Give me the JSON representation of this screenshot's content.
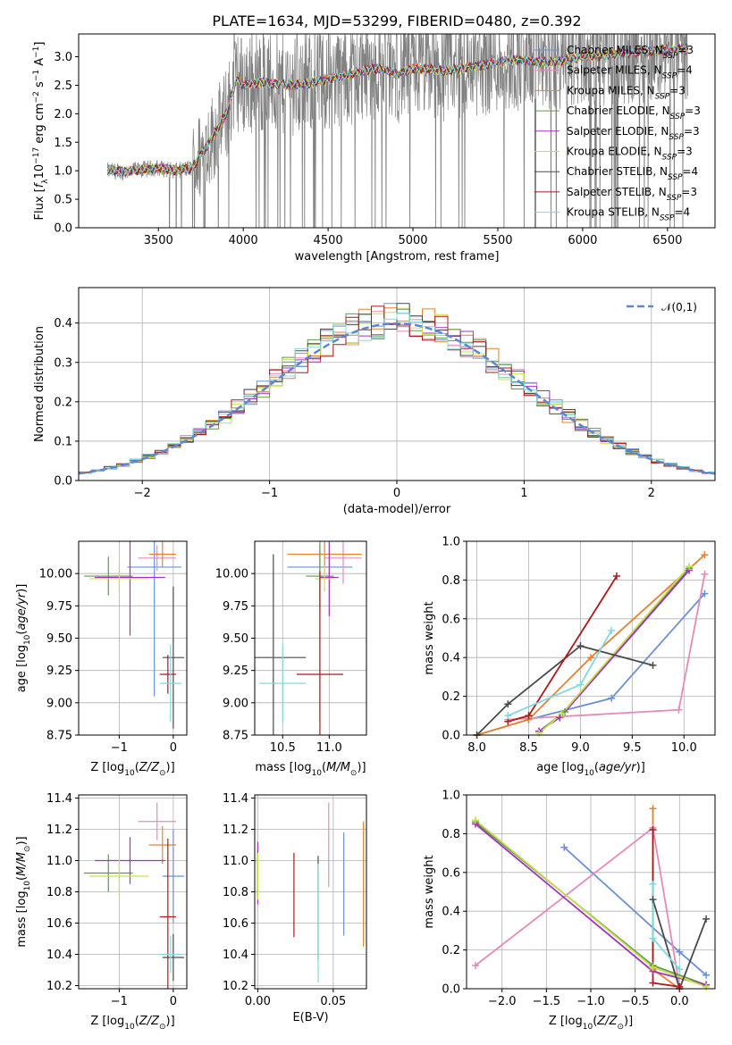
{
  "page": {
    "title": "PLATE=1634, MJD=53299, FIBERID=0480, z=0.392"
  },
  "models": [
    {
      "name": "Chabrier MILES",
      "nssp": 3,
      "color": "#6a8fd8"
    },
    {
      "name": "Salpeter MILES",
      "nssp": 4,
      "color": "#e58bb8"
    },
    {
      "name": "Kroupa MILES",
      "nssp": 3,
      "color": "#e6822e"
    },
    {
      "name": "Chabrier ELODIE",
      "nssp": 3,
      "color": "#5e9a4c"
    },
    {
      "name": "Salpeter ELODIE",
      "nssp": 3,
      "color": "#a233c0"
    },
    {
      "name": "Kroupa ELODIE",
      "nssp": 3,
      "color": "#c9e04a"
    },
    {
      "name": "Chabrier STELIB",
      "nssp": 4,
      "color": "#4a4a4a"
    },
    {
      "name": "Salpeter STELIB",
      "nssp": 3,
      "color": "#b01818"
    },
    {
      "name": "Kroupa STELIB",
      "nssp": 4,
      "color": "#80d8e0"
    }
  ],
  "chart_data": [
    {
      "id": "spectrum",
      "type": "line",
      "title": "PLATE=1634, MJD=53299, FIBERID=0480, z=0.392",
      "xlabel": "wavelength [Angstrom, rest frame]",
      "ylabel": "Flux [f_λ 10^-17 erg cm^-2 s^-1 A^-1]",
      "xlim": [
        3030,
        6780
      ],
      "ylim": [
        0,
        3.4
      ],
      "xticks": [
        3500,
        4000,
        4500,
        5000,
        5500,
        6000,
        6500
      ],
      "yticks": [
        0.0,
        0.5,
        1.0,
        1.5,
        2.0,
        2.5,
        3.0
      ],
      "data_color": "#808080",
      "continuum": [
        [
          3200,
          1.0
        ],
        [
          3300,
          0.98
        ],
        [
          3400,
          1.02
        ],
        [
          3500,
          1.05
        ],
        [
          3600,
          1.0
        ],
        [
          3700,
          1.05
        ],
        [
          3800,
          1.5
        ],
        [
          3900,
          2.0
        ],
        [
          3960,
          2.6
        ],
        [
          4000,
          2.5
        ],
        [
          4100,
          2.55
        ],
        [
          4300,
          2.5
        ],
        [
          4500,
          2.6
        ],
        [
          4700,
          2.75
        ],
        [
          4800,
          2.8
        ],
        [
          4900,
          2.7
        ],
        [
          5000,
          2.8
        ],
        [
          5200,
          2.75
        ],
        [
          5400,
          2.85
        ],
        [
          5600,
          2.95
        ],
        [
          5800,
          2.9
        ],
        [
          6000,
          3.0
        ],
        [
          6200,
          3.05
        ],
        [
          6400,
          3.1
        ],
        [
          6620,
          3.15
        ]
      ],
      "legend": "upper right",
      "grid": false
    },
    {
      "id": "residuals",
      "type": "line",
      "xlabel": "(data-model)/error",
      "ylabel": "Normed distribution",
      "xlim": [
        -2.5,
        2.5
      ],
      "ylim": [
        0,
        0.49
      ],
      "xticks": [
        -2,
        -1,
        0,
        1,
        2
      ],
      "yticks": [
        0.0,
        0.1,
        0.2,
        0.3,
        0.4
      ],
      "reference": {
        "label": "𝒩(0,1)",
        "mean": 0,
        "sigma": 1,
        "color": "#5b87d6"
      },
      "bin_width": 0.1,
      "legend": "upper right",
      "grid": true
    },
    {
      "id": "age-vs-Z",
      "type": "scatter",
      "xlabel": "Z [log10(Z/Z☉)]",
      "ylabel": "age  [log10(age/yr)]",
      "xlim": [
        -1.75,
        0.25
      ],
      "ylim": [
        8.75,
        10.25
      ],
      "xticks": [
        -1,
        0
      ],
      "yticks": [
        8.75,
        9.0,
        9.25,
        9.5,
        9.75,
        10.0
      ],
      "errorbars": [
        {
          "model": 0,
          "x": -0.35,
          "xerr": 0.5,
          "y": 10.05,
          "yerr": 1.0
        },
        {
          "model": 1,
          "x": -0.3,
          "xerr": 0.35,
          "y": 10.12,
          "yerr": 0.1
        },
        {
          "model": 2,
          "x": -0.2,
          "xerr": 0.25,
          "y": 10.15,
          "yerr": 0.1
        },
        {
          "model": 3,
          "x": -1.2,
          "xerr": 0.45,
          "y": 9.98,
          "yerr": 0.15
        },
        {
          "model": 4,
          "x": -0.8,
          "xerr": 0.65,
          "y": 9.97,
          "yerr": 0.45
        },
        {
          "model": 5,
          "x": -1.0,
          "xerr": 0.55,
          "y": 9.96,
          "yerr": 0.1
        },
        {
          "model": 6,
          "x": 0.0,
          "xerr": 0.2,
          "y": 9.35,
          "yerr": 0.55
        },
        {
          "model": 7,
          "x": -0.1,
          "xerr": 0.15,
          "y": 9.22,
          "yerr": 0.15
        },
        {
          "model": 8,
          "x": -0.05,
          "xerr": 0.2,
          "y": 9.15,
          "yerr": 0.3
        }
      ],
      "grid": true
    },
    {
      "id": "age-vs-mass",
      "type": "scatter",
      "xlabel": "mass [log10(M/M☉)]",
      "ylabel": "",
      "xlim": [
        10.2,
        11.4
      ],
      "ylim": [
        8.75,
        10.25
      ],
      "xticks": [
        10.5,
        11.0
      ],
      "yticks": [
        8.75,
        9.0,
        9.25,
        9.5,
        9.75,
        10.0
      ],
      "errorbars": [
        {
          "model": 0,
          "x": 10.9,
          "xerr": 0.35,
          "y": 10.05,
          "yerr": 1.2
        },
        {
          "model": 1,
          "x": 11.15,
          "xerr": 0.2,
          "y": 10.12,
          "yerr": 0.2
        },
        {
          "model": 2,
          "x": 10.95,
          "xerr": 0.4,
          "y": 10.15,
          "yerr": 0.15
        },
        {
          "model": 3,
          "x": 10.9,
          "xerr": 0.15,
          "y": 9.98,
          "yerr": 0.25
        },
        {
          "model": 4,
          "x": 11.0,
          "xerr": 0.1,
          "y": 9.97,
          "yerr": 0.3
        },
        {
          "model": 5,
          "x": 10.95,
          "xerr": 0.1,
          "y": 9.96,
          "yerr": 0.1
        },
        {
          "model": 6,
          "x": 10.4,
          "xerr": 0.35,
          "y": 9.35,
          "yerr": 0.8
        },
        {
          "model": 7,
          "x": 10.9,
          "xerr": 0.25,
          "y": 9.22,
          "yerr": 0.8
        },
        {
          "model": 8,
          "x": 10.5,
          "xerr": 0.25,
          "y": 9.15,
          "yerr": 0.3
        }
      ],
      "grid": true
    },
    {
      "id": "weight-vs-age",
      "type": "line",
      "xlabel": "age  [log10(age/yr)]",
      "ylabel": "mass weight",
      "xlim": [
        7.9,
        10.3
      ],
      "ylim": [
        0,
        1.0
      ],
      "xticks": [
        8.0,
        8.5,
        9.0,
        9.5,
        10.0
      ],
      "yticks": [
        0.0,
        0.2,
        0.4,
        0.6,
        0.8,
        1.0
      ],
      "series": [
        {
          "model": 0,
          "x": [
            8.0,
            8.5,
            9.3,
            10.2
          ],
          "y": [
            0.0,
            0.08,
            0.19,
            0.73
          ]
        },
        {
          "model": 1,
          "x": [
            8.3,
            9.95,
            10.2
          ],
          "y": [
            0.08,
            0.13,
            0.83
          ]
        },
        {
          "model": 2,
          "x": [
            8.0,
            8.5,
            9.1,
            10.2
          ],
          "y": [
            0.0,
            0.08,
            0.4,
            0.93
          ]
        },
        {
          "model": 3,
          "x": [
            8.6,
            8.85,
            10.05
          ],
          "y": [
            0.02,
            0.12,
            0.86
          ]
        },
        {
          "model": 4,
          "x": [
            8.6,
            8.8,
            10.05
          ],
          "y": [
            0.02,
            0.09,
            0.85
          ]
        },
        {
          "model": 5,
          "x": [
            8.6,
            8.82,
            10.05
          ],
          "y": [
            0.01,
            0.11,
            0.87
          ]
        },
        {
          "model": 6,
          "x": [
            8.0,
            8.3,
            9.0,
            9.7
          ],
          "y": [
            0.0,
            0.16,
            0.46,
            0.36
          ]
        },
        {
          "model": 7,
          "x": [
            8.3,
            8.5,
            9.35
          ],
          "y": [
            0.07,
            0.1,
            0.82
          ]
        },
        {
          "model": 8,
          "x": [
            8.3,
            9.0,
            9.3
          ],
          "y": [
            0.1,
            0.26,
            0.54
          ]
        }
      ],
      "grid": true
    },
    {
      "id": "mass-vs-Z",
      "type": "scatter",
      "xlabel": "Z [log10(Z/Z☉)]",
      "ylabel": "mass [log10(M/M☉)]",
      "xlim": [
        -1.75,
        0.25
      ],
      "ylim": [
        10.18,
        11.42
      ],
      "xticks": [
        -1,
        0
      ],
      "yticks": [
        10.2,
        10.4,
        10.6,
        10.8,
        11.0,
        11.2,
        11.4
      ],
      "errorbars": [
        {
          "model": 0,
          "x": -0.0,
          "xerr": 0.2,
          "y": 10.9,
          "yerr": 0.3
        },
        {
          "model": 1,
          "x": -0.3,
          "xerr": 0.35,
          "y": 11.25,
          "yerr": 0.12
        },
        {
          "model": 2,
          "x": -0.2,
          "xerr": 0.25,
          "y": 11.1,
          "yerr": 0.12
        },
        {
          "model": 3,
          "x": -1.2,
          "xerr": 0.45,
          "y": 10.92,
          "yerr": 0.12
        },
        {
          "model": 4,
          "x": -0.8,
          "xerr": 0.65,
          "y": 11.0,
          "yerr": 0.15
        },
        {
          "model": 5,
          "x": -1.0,
          "xerr": 0.55,
          "y": 10.9,
          "yerr": 0.12
        },
        {
          "model": 6,
          "x": 0.0,
          "xerr": 0.2,
          "y": 10.38,
          "yerr": 0.15
        },
        {
          "model": 7,
          "x": -0.1,
          "xerr": 0.15,
          "y": 10.64,
          "yerr": 0.5
        },
        {
          "model": 8,
          "x": -0.05,
          "xerr": 0.2,
          "y": 10.4,
          "yerr": 0.12
        }
      ],
      "grid": true
    },
    {
      "id": "mass-vs-EBV",
      "type": "scatter",
      "xlabel": "E(B-V)",
      "ylabel": "",
      "xlim": [
        -0.002,
        0.072
      ],
      "ylim": [
        10.18,
        11.42
      ],
      "xticks": [
        0.0,
        0.05
      ],
      "yticks": [
        10.2,
        10.4,
        10.6,
        10.8,
        11.0,
        11.2,
        11.4
      ],
      "errorbars": [
        {
          "model": 0,
          "x": 0.057,
          "xerr": 0.0,
          "y": 10.85,
          "yerr": 0.33
        },
        {
          "model": 1,
          "x": 0.047,
          "xerr": 0.0,
          "y": 11.1,
          "yerr": 0.27
        },
        {
          "model": 2,
          "x": 0.07,
          "xerr": 0.0,
          "y": 10.85,
          "yerr": 0.4
        },
        {
          "model": 3,
          "x": 0.0,
          "xerr": 0.0,
          "y": 10.92,
          "yerr": 0.15
        },
        {
          "model": 4,
          "x": 0.0,
          "xerr": 0.0,
          "y": 10.92,
          "yerr": 0.2
        },
        {
          "model": 5,
          "x": 0.0,
          "xerr": 0.0,
          "y": 10.9,
          "yerr": 0.15
        },
        {
          "model": 6,
          "x": 0.04,
          "xerr": 0.0,
          "y": 10.7,
          "yerr": 0.33
        },
        {
          "model": 7,
          "x": 0.024,
          "xerr": 0.0,
          "y": 10.78,
          "yerr": 0.27
        },
        {
          "model": 8,
          "x": 0.04,
          "xerr": 0.0,
          "y": 10.6,
          "yerr": 0.38
        }
      ],
      "grid": true
    },
    {
      "id": "weight-vs-Z",
      "type": "line",
      "xlabel": "Z [log10(Z/Z☉)]",
      "ylabel": "mass weight",
      "xlim": [
        -2.4,
        0.4
      ],
      "ylim": [
        0,
        1.0
      ],
      "xticks": [
        -2.0,
        -1.5,
        -1.0,
        -0.5,
        0.0
      ],
      "yticks": [
        0.0,
        0.2,
        0.4,
        0.6,
        0.8,
        1.0
      ],
      "series": [
        {
          "model": 0,
          "x": [
            -1.3,
            0.0,
            0.3
          ],
          "y": [
            0.73,
            0.19,
            0.07
          ]
        },
        {
          "model": 1,
          "x": [
            -2.3,
            -0.3,
            0.0
          ],
          "y": [
            0.12,
            0.83,
            0.01
          ]
        },
        {
          "model": 2,
          "x": [
            -0.3,
            -0.3,
            0.0
          ],
          "y": [
            0.93,
            0.1,
            0.0
          ]
        },
        {
          "model": 3,
          "x": [
            -2.3,
            -0.3,
            0.3
          ],
          "y": [
            0.86,
            0.12,
            0.02
          ]
        },
        {
          "model": 4,
          "x": [
            -2.3,
            -0.3,
            0.3
          ],
          "y": [
            0.85,
            0.09,
            0.02
          ]
        },
        {
          "model": 5,
          "x": [
            -2.3,
            -0.3,
            0.3
          ],
          "y": [
            0.87,
            0.11,
            0.01
          ]
        },
        {
          "model": 6,
          "x": [
            -0.3,
            0.0,
            0.3
          ],
          "y": [
            0.46,
            0.0,
            0.36
          ]
        },
        {
          "model": 7,
          "x": [
            -0.3,
            -0.3,
            0.0
          ],
          "y": [
            0.82,
            0.03,
            0.01
          ]
        },
        {
          "model": 8,
          "x": [
            -0.3,
            -0.3,
            0.0
          ],
          "y": [
            0.54,
            0.26,
            0.1
          ]
        }
      ],
      "grid": true
    }
  ]
}
